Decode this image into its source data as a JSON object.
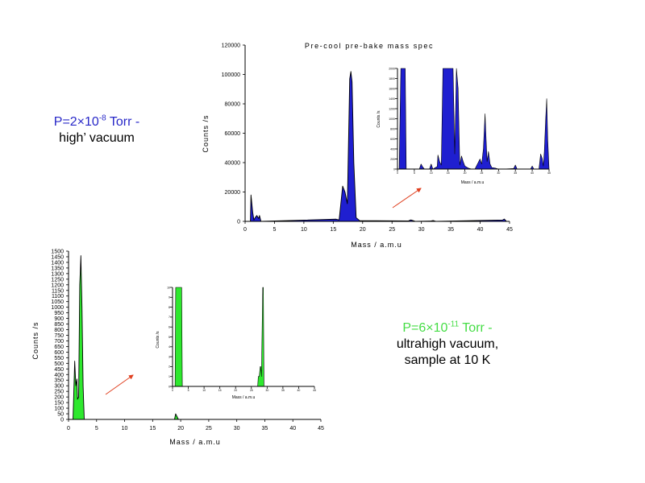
{
  "annotations": {
    "top": {
      "pressure_prefix": "P=2×10",
      "pressure_exp": "-8",
      "pressure_suffix": " Torr -",
      "line2": "high’ vacuum",
      "color": "#2828c8"
    },
    "bottom": {
      "pressure_prefix": "P=6×10",
      "pressure_exp": "-11",
      "pressure_suffix": " Torr -",
      "line2": "ultrahigh vacuum,",
      "line3": "sample at 10 K",
      "color": "#44dd44"
    }
  },
  "colors": {
    "top_fill": "#1f1fd0",
    "bottom_fill": "#2ee82e",
    "outline": "#000000",
    "arrow": "#e04020"
  },
  "chart_data": [
    {
      "type": "area",
      "title": "Pre-cool pre-bake mass spec",
      "xlabel": "Mass / a.m.u",
      "ylabel": "Counts /s",
      "xlim": [
        0,
        45
      ],
      "ylim": [
        0,
        120000
      ],
      "xticks": [
        0,
        5,
        10,
        15,
        20,
        25,
        30,
        35,
        40,
        45
      ],
      "yticks": [
        0,
        20000,
        40000,
        60000,
        80000,
        100000,
        120000
      ],
      "x": [
        0.9,
        1.0,
        1.15,
        1.3,
        1.5,
        1.7,
        2.0,
        2.3,
        2.45,
        2.7,
        15.5,
        16.0,
        16.6,
        17.0,
        17.4,
        17.8,
        18.0,
        18.2,
        18.5,
        18.9,
        19.5,
        27.8,
        28.2,
        28.6,
        29.0,
        31.5,
        32.0,
        32.5,
        43.8,
        44.1,
        44.4
      ],
      "y": [
        0,
        18000,
        12000,
        6000,
        1000,
        2500,
        4000,
        2000,
        4000,
        0,
        1500,
        1000,
        24000,
        20000,
        12000,
        97000,
        102000,
        95000,
        40000,
        2500,
        500,
        300,
        1000,
        500,
        0,
        200,
        600,
        0,
        900,
        1600,
        400
      ]
    },
    {
      "type": "area",
      "title": "",
      "xlabel": "Mass / a.m.u",
      "ylabel": "Counts /s",
      "xlim": [
        0,
        45
      ],
      "ylim": [
        0,
        2000
      ],
      "xticks": [
        0,
        5,
        10,
        15,
        20,
        25,
        30,
        35,
        40,
        45
      ],
      "yticks": [
        0,
        200,
        400,
        600,
        800,
        1000,
        1200,
        1400,
        1600,
        1800,
        2000
      ],
      "x": [
        0.5,
        1.0,
        1.2,
        1.5,
        1.8,
        2.0,
        2.3,
        2.6,
        6.5,
        7.0,
        7.5,
        8.0,
        9.5,
        10.0,
        10.5,
        11.8,
        12.0,
        12.5,
        13.0,
        13.5,
        14.0,
        14.5,
        15.0,
        15.5,
        16.0,
        16.5,
        17.0,
        17.5,
        18.0,
        18.5,
        19.0,
        19.5,
        20.0,
        21.0,
        22.0,
        23.0,
        24.5,
        25.0,
        25.5,
        26.0,
        26.3,
        26.6,
        27.0,
        27.5,
        28.0,
        29.0,
        30.0,
        31.0,
        34.5,
        35.0,
        35.5,
        39.5,
        40.0,
        40.5,
        42.0,
        42.5,
        43.0,
        43.3,
        43.6,
        44.0,
        44.3,
        44.6,
        45.0
      ],
      "y": [
        0,
        2000,
        2000,
        2000,
        2000,
        2000,
        2000,
        0,
        0,
        100,
        40,
        0,
        0,
        100,
        0,
        50,
        280,
        150,
        80,
        2000,
        2000,
        2000,
        2000,
        2000,
        2000,
        2000,
        300,
        2000,
        1600,
        80,
        260,
        150,
        60,
        20,
        0,
        0,
        200,
        100,
        400,
        1100,
        600,
        150,
        350,
        100,
        30,
        20,
        0,
        0,
        10,
        80,
        0,
        0,
        60,
        0,
        0,
        300,
        200,
        60,
        350,
        1000,
        1400,
        600,
        0
      ]
    },
    {
      "type": "area",
      "title": "",
      "xlabel": "Mass / a.m.u",
      "ylabel": "Counts /s",
      "xlim": [
        0,
        45
      ],
      "ylim": [
        0,
        1500
      ],
      "xticks": [
        0,
        5,
        10,
        15,
        20,
        25,
        30,
        35,
        40,
        45
      ],
      "yticks": [
        0,
        50,
        100,
        150,
        200,
        250,
        300,
        350,
        400,
        450,
        500,
        550,
        600,
        650,
        700,
        750,
        800,
        850,
        900,
        950,
        1000,
        1050,
        1100,
        1150,
        1200,
        1250,
        1300,
        1350,
        1400,
        1450,
        1500
      ],
      "x": [
        0.8,
        1.1,
        1.3,
        1.5,
        1.6,
        1.8,
        1.9,
        2.0,
        2.1,
        2.2,
        2.4,
        2.6,
        2.8,
        18.9,
        19.1,
        19.3,
        19.6
      ],
      "y": [
        0,
        520,
        300,
        360,
        180,
        200,
        700,
        1200,
        1320,
        1460,
        1000,
        300,
        0,
        0,
        50,
        30,
        0
      ]
    },
    {
      "type": "area",
      "title": "",
      "xlabel": "Mass / a.m.u",
      "ylabel": "Counts /s",
      "xlim": [
        0,
        45
      ],
      "ylim": [
        0,
        10
      ],
      "xticks": [
        0,
        5,
        10,
        15,
        20,
        25,
        30,
        35,
        40,
        45
      ],
      "yticks": [
        0,
        1,
        2,
        3,
        4,
        5,
        6,
        7,
        8,
        9,
        10
      ],
      "x": [
        0.8,
        1.0,
        1.5,
        2.0,
        2.5,
        2.9,
        3.1,
        27.0,
        27.2,
        27.5,
        27.8,
        28.0,
        28.2,
        28.6,
        28.8,
        29.0
      ],
      "y": [
        0,
        10,
        10,
        10,
        10,
        10,
        0,
        0,
        1,
        1,
        2,
        2,
        1,
        10,
        10,
        0
      ]
    }
  ]
}
